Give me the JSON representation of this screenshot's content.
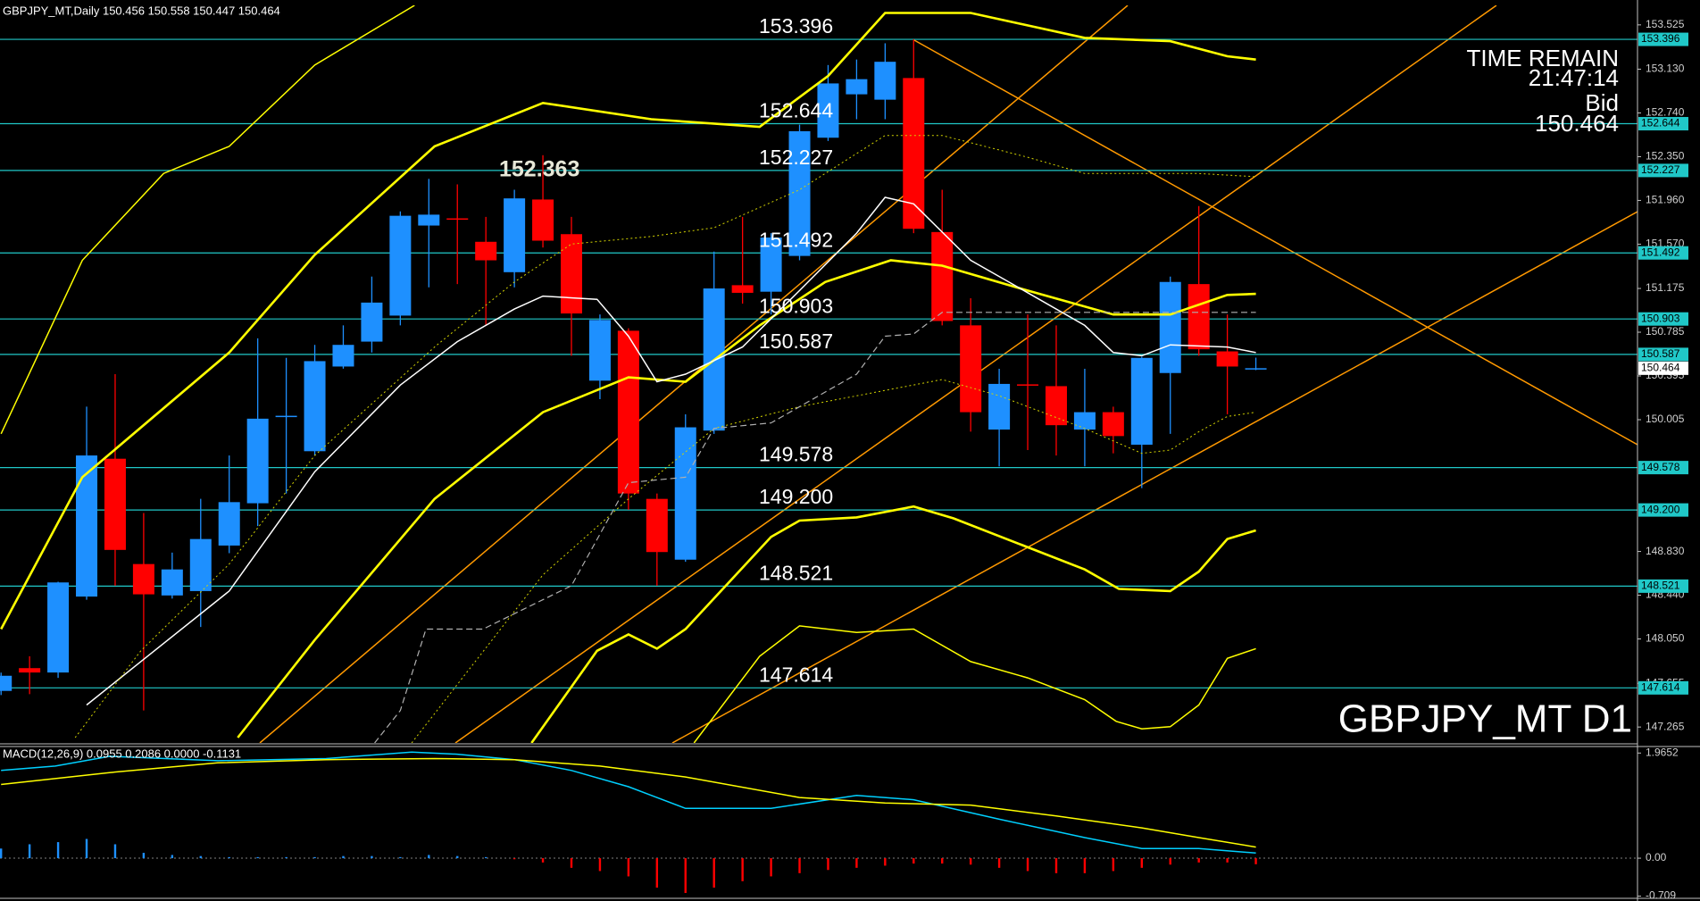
{
  "chart_data": [
    {
      "type": "candlestick",
      "title": "GBPJPY_MT,Daily  150.456 150.558 150.447 150.464",
      "colors": {
        "up": "#1e90ff",
        "down": "#ff0000"
      },
      "open": [
        147.587,
        147.79,
        147.751,
        148.428,
        149.657,
        148.718,
        148.438,
        148.477,
        148.883,
        149.26,
        150.03,
        149.724,
        150.479,
        150.701,
        150.933,
        151.736,
        151.8,
        151.591,
        151.32,
        151.968,
        151.659,
        150.353,
        150.798,
        149.299,
        148.757,
        149.908,
        151.204,
        151.146,
        151.465,
        152.519,
        152.906,
        152.858,
        153.051,
        151.678,
        150.846,
        149.917,
        150.32,
        150.304,
        149.917,
        150.072,
        149.782,
        150.421,
        151.214,
        150.614,
        150.456
      ],
      "high": [
        147.75,
        147.896,
        148.56,
        150.121,
        150.411,
        149.173,
        148.82,
        149.299,
        149.686,
        150.73,
        150.556,
        150.672,
        150.846,
        151.281,
        151.862,
        152.152,
        152.103,
        151.813,
        152.055,
        152.363,
        151.813,
        150.943,
        150.82,
        149.347,
        150.053,
        151.504,
        151.813,
        151.668,
        152.635,
        153.167,
        153.216,
        153.361,
        153.396,
        152.055,
        151.088,
        150.459,
        150.943,
        150.846,
        150.459,
        150.121,
        150.566,
        151.281,
        151.91,
        150.943,
        150.558
      ],
      "low": [
        147.55,
        147.558,
        147.703,
        148.4,
        148.525,
        147.413,
        148.41,
        148.157,
        148.815,
        149.057,
        149.347,
        149.686,
        150.46,
        150.604,
        150.846,
        151.185,
        151.214,
        150.846,
        151.185,
        151.54,
        150.575,
        150.188,
        149.202,
        148.525,
        148.738,
        149.879,
        151.04,
        150.943,
        151.426,
        152.49,
        152.684,
        152.684,
        151.668,
        150.846,
        149.898,
        149.589,
        149.734,
        149.686,
        149.589,
        149.705,
        149.395,
        149.879,
        150.575,
        150.053,
        150.447
      ],
      "close": [
        147.722,
        147.751,
        148.554,
        149.686,
        148.844,
        148.448,
        148.67,
        148.941,
        149.27,
        150.014,
        150.04,
        150.527,
        150.672,
        151.049,
        151.823,
        151.833,
        151.79,
        151.426,
        151.978,
        151.601,
        150.952,
        150.894,
        149.347,
        148.825,
        149.937,
        151.175,
        151.136,
        151.629,
        152.577,
        153.003,
        153.041,
        153.196,
        151.707,
        150.885,
        150.072,
        150.324,
        150.31,
        149.956,
        150.072,
        149.859,
        150.556,
        151.233,
        150.633,
        150.479,
        150.464
      ],
      "ylim": [
        147.123,
        153.699
      ],
      "yticks": [
        153.525,
        {
          "value": 153.13,
          "label": "153.130"
        },
        {
          "value": 152.74,
          "label": "152.740"
        },
        {
          "value": 152.35,
          "label": "152.350"
        },
        {
          "value": 151.96,
          "label": "151.960"
        },
        {
          "value": 151.57,
          "label": "151.570"
        },
        151.175,
        150.785,
        150.395,
        150.005,
        {
          "value": 148.83,
          "label": "148.830"
        },
        {
          "value": 148.44,
          "label": "148.440"
        },
        {
          "value": 148.05,
          "label": "148.050"
        },
        147.655,
        147.265
      ],
      "levels": [
        153.396,
        152.644,
        152.227,
        151.492,
        150.903,
        150.587,
        149.578,
        {
          "value": 149.2,
          "label": "149.200"
        },
        148.521,
        147.614
      ],
      "level_color": "#20c8c8",
      "high_label": 152.363,
      "bid": 150.464,
      "bid_label": "Bid",
      "time_remain_label": "TIME REMAIN",
      "time_remain": "21:47:14",
      "symbol_label": "GBPJPY_MT D1",
      "overlays": [
        {
          "style": "thin",
          "color": "#ffff00",
          "x": [
            0,
            2.85,
            5.7,
            8,
            11,
            14.5
          ],
          "values": [
            149.879,
            151.426,
            152.201,
            152.442,
            153.167,
            153.699
          ]
        },
        {
          "style": "thick",
          "color": "#ffff00",
          "x": [
            0,
            2.85,
            8,
            11,
            15.2,
            19,
            22.8,
            26.6,
            29,
            31,
            34,
            38,
            41,
            43,
            44
          ],
          "values": [
            148.138,
            149.492,
            150.604,
            151.475,
            152.442,
            152.829,
            152.684,
            152.616,
            153.07,
            153.631,
            153.631,
            153.409,
            153.38,
            153.245,
            153.216
          ]
        },
        {
          "style": "thick",
          "color": "#ffff00",
          "x": [
            8.3,
            11,
            15.2,
            19,
            22,
            24,
            26.6,
            28.9,
            31.2,
            33,
            36,
            39,
            41,
            43,
            44
          ],
          "values": [
            147.171,
            148.041,
            149.299,
            150.072,
            150.382,
            150.343,
            150.846,
            151.233,
            151.426,
            151.378,
            151.156,
            150.943,
            150.943,
            151.117,
            151.127
          ]
        },
        {
          "style": "thick",
          "color": "#ffff00",
          "x": [
            18.6,
            20.9,
            22,
            23,
            24,
            27,
            28,
            30,
            32,
            33.4,
            38,
            39.2,
            41,
            42,
            43,
            44
          ],
          "values": [
            147.123,
            147.945,
            148.09,
            147.964,
            148.138,
            148.96,
            149.105,
            149.134,
            149.231,
            149.125,
            148.67,
            148.496,
            148.477,
            148.651,
            148.941,
            149.018
          ]
        },
        {
          "style": "thin",
          "color": "#ffff00",
          "x": [
            24.3,
            26.6,
            28,
            30,
            32,
            34,
            36,
            38,
            39.1,
            40,
            41,
            42,
            43,
            44
          ],
          "values": [
            147.123,
            147.896,
            148.167,
            148.109,
            148.138,
            147.848,
            147.703,
            147.509,
            147.316,
            147.249,
            147.268,
            147.461,
            147.877,
            147.964
          ]
        },
        {
          "style": "thin",
          "color": "#ffffff",
          "x": [
            3,
            4.9,
            8,
            11,
            14,
            16,
            18,
            19,
            20.9,
            22,
            23,
            24,
            26,
            28,
            30,
            31,
            32,
            34,
            36,
            38,
            39,
            40,
            41,
            43,
            44
          ],
          "values": [
            147.461,
            147.848,
            148.477,
            149.541,
            150.314,
            150.701,
            150.991,
            151.107,
            151.078,
            150.749,
            150.343,
            150.411,
            150.653,
            151.156,
            151.668,
            151.987,
            151.929,
            151.426,
            151.137,
            150.846,
            150.604,
            150.575,
            150.672,
            150.653,
            150.604
          ]
        },
        {
          "style": "dotted",
          "color": "#d4d400",
          "x": [
            2.6,
            4.9,
            8,
            11,
            15.2,
            18,
            20,
            22.8,
            25,
            28,
            31,
            33,
            36,
            38,
            42,
            44
          ],
          "values": [
            147.171,
            147.945,
            148.718,
            149.686,
            150.653,
            151.233,
            151.571,
            151.639,
            151.717,
            152.055,
            152.539,
            152.539,
            152.345,
            152.2,
            152.2,
            152.171
          ]
        },
        {
          "style": "dotted",
          "color": "#d4d400",
          "x": [
            14.4,
            19,
            22,
            25,
            28,
            31,
            33,
            35,
            38,
            40,
            41,
            42,
            43,
            44
          ],
          "values": [
            147.123,
            148.622,
            149.299,
            149.927,
            150.121,
            150.266,
            150.363,
            150.218,
            149.927,
            149.705,
            149.734,
            149.898,
            150.034,
            150.072
          ]
        },
        {
          "style": "dashed",
          "color": "#b0b0b0",
          "x": [
            13.1,
            14,
            14.9,
            16.9,
            20,
            22,
            24,
            25,
            27,
            30,
            31,
            32,
            33,
            44
          ],
          "values": [
            147.123,
            147.413,
            148.138,
            148.138,
            148.525,
            149.444,
            149.492,
            149.927,
            149.976,
            150.411,
            150.749,
            150.769,
            150.962,
            150.962
          ]
        }
      ]
    },
    {
      "type": "macd",
      "title": "MACD(12,26,9) 0.0955 0.2086 0.0000 -0.1131",
      "ylim": [
        -0.75,
        2.087
      ],
      "yticks": [
        1.9652,
        {
          "value": 0,
          "label": "0.00"
        },
        -0.709
      ],
      "hist_colors": {
        "up": "#1e90ff",
        "down": "#ff0000"
      },
      "histogram": [
        0.18,
        0.26,
        0.3,
        0.36,
        0.26,
        0.1,
        0.06,
        0.04,
        0.02,
        0.02,
        0.02,
        0.02,
        0.04,
        0.04,
        0.02,
        0.06,
        0.04,
        0.02,
        -0.02,
        -0.08,
        -0.18,
        -0.24,
        -0.34,
        -0.55,
        -0.65,
        -0.55,
        -0.43,
        -0.34,
        -0.28,
        -0.22,
        -0.18,
        -0.14,
        -0.1,
        -0.1,
        -0.12,
        -0.18,
        -0.24,
        -0.28,
        -0.28,
        -0.24,
        -0.18,
        -0.12,
        -0.08,
        -0.08,
        -0.1131
      ],
      "series": [
        {
          "color": "#00d0ff",
          "x": [
            0,
            1.9,
            3.8,
            7.6,
            11.4,
            14.4,
            16,
            18,
            20,
            22,
            24,
            27,
            30,
            32,
            35,
            38,
            40,
            42,
            44
          ],
          "values": [
            1.64,
            1.721,
            1.903,
            1.822,
            1.862,
            1.984,
            1.943,
            1.842,
            1.64,
            1.336,
            0.931,
            0.931,
            1.174,
            1.093,
            0.729,
            0.385,
            0.182,
            0.182,
            0.0955
          ]
        },
        {
          "color": "#ffff00",
          "x": [
            0,
            3.8,
            7.6,
            11.4,
            15.2,
            18,
            21,
            24,
            28,
            31,
            34,
            37,
            40,
            42,
            44
          ],
          "values": [
            1.377,
            1.599,
            1.781,
            1.842,
            1.862,
            1.842,
            1.721,
            1.518,
            1.134,
            1.032,
            0.992,
            0.789,
            0.567,
            0.385,
            0.2086
          ]
        }
      ]
    }
  ]
}
